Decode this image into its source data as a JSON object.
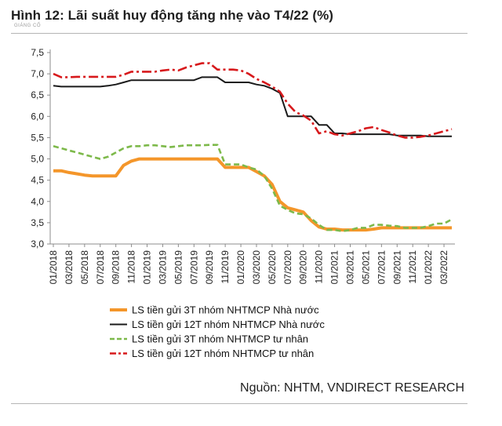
{
  "figure": {
    "title": "Hình 12: Lãi suất huy động tăng nhẹ vào T4/22 (%)",
    "watermark": "GIÁNG CỐ",
    "source": "Nguồn: NHTM, VNDIRECT RESEARCH"
  },
  "chart_data": {
    "type": "line",
    "title": "Hình 12: Lãi suất huy động tăng nhẹ vào T4/22 (%)",
    "xlabel": "",
    "ylabel": "",
    "ylim": [
      3.0,
      7.5
    ],
    "yticks": [
      "7,5",
      "7,0",
      "6,5",
      "6,0",
      "5,5",
      "5,0",
      "4,5",
      "4,0",
      "3,5",
      "3,0"
    ],
    "grid": false,
    "legend_position": "bottom",
    "x": [
      "01/2018",
      "02/2018",
      "03/2018",
      "04/2018",
      "05/2018",
      "06/2018",
      "07/2018",
      "08/2018",
      "09/2018",
      "10/2018",
      "11/2018",
      "12/2018",
      "01/2019",
      "02/2019",
      "03/2019",
      "04/2019",
      "05/2019",
      "06/2019",
      "07/2019",
      "08/2019",
      "09/2019",
      "10/2019",
      "11/2019",
      "12/2019",
      "01/2020",
      "02/2020",
      "03/2020",
      "04/2020",
      "05/2020",
      "06/2020",
      "07/2020",
      "08/2020",
      "09/2020",
      "10/2020",
      "11/2020",
      "12/2020",
      "01/2021",
      "02/2021",
      "03/2021",
      "04/2021",
      "05/2021",
      "06/2021",
      "07/2021",
      "08/2021",
      "09/2021",
      "10/2021",
      "11/2021",
      "12/2021",
      "01/2022",
      "02/2022",
      "03/2022",
      "04/2022"
    ],
    "xtick_labels": [
      "01/2018",
      "03/2018",
      "05/2018",
      "07/2018",
      "09/2018",
      "11/2018",
      "01/2019",
      "03/2019",
      "05/2019",
      "07/2019",
      "09/2019",
      "11/2019",
      "01/2020",
      "03/2020",
      "05/2020",
      "07/2020",
      "09/2020",
      "11/2020",
      "01/2021",
      "03/2021",
      "05/2021",
      "07/2021",
      "09/2021",
      "11/2021",
      "01/2022",
      "03/2022"
    ],
    "series": [
      {
        "name": "LS tiền gửi 3T nhóm NHTMCP Nhà nước",
        "color": "#F4962A",
        "style": "solid",
        "values": [
          4.72,
          4.72,
          4.68,
          4.65,
          4.62,
          4.6,
          4.6,
          4.6,
          4.6,
          4.85,
          4.95,
          5.0,
          5.0,
          5.0,
          5.0,
          5.0,
          5.0,
          5.0,
          5.0,
          5.0,
          5.0,
          5.0,
          4.8,
          4.8,
          4.8,
          4.8,
          4.7,
          4.6,
          4.4,
          4.0,
          3.85,
          3.8,
          3.75,
          3.55,
          3.4,
          3.35,
          3.35,
          3.33,
          3.33,
          3.33,
          3.33,
          3.35,
          3.38,
          3.38,
          3.38,
          3.38,
          3.38,
          3.38,
          3.38,
          3.38,
          3.38,
          3.38
        ]
      },
      {
        "name": "LS tiền gửi 12T nhóm NHTMCP Nhà nước",
        "color": "#1A1A1A",
        "style": "solid",
        "values": [
          6.72,
          6.7,
          6.7,
          6.7,
          6.7,
          6.7,
          6.7,
          6.72,
          6.75,
          6.8,
          6.85,
          6.85,
          6.85,
          6.85,
          6.85,
          6.85,
          6.85,
          6.85,
          6.85,
          6.92,
          6.92,
          6.92,
          6.8,
          6.8,
          6.8,
          6.8,
          6.75,
          6.72,
          6.65,
          6.55,
          6.0,
          6.0,
          6.0,
          6.0,
          5.8,
          5.8,
          5.6,
          5.6,
          5.58,
          5.58,
          5.58,
          5.58,
          5.58,
          5.58,
          5.55,
          5.55,
          5.55,
          5.55,
          5.53,
          5.53,
          5.53,
          5.53
        ]
      },
      {
        "name": "LS tiền gửi 3T nhóm NHTMCP tư nhân",
        "color": "#7DB94A",
        "style": "dashed",
        "values": [
          5.3,
          5.25,
          5.2,
          5.15,
          5.1,
          5.05,
          5.0,
          5.05,
          5.15,
          5.25,
          5.3,
          5.3,
          5.32,
          5.32,
          5.3,
          5.28,
          5.3,
          5.32,
          5.32,
          5.32,
          5.33,
          5.33,
          4.87,
          4.87,
          4.87,
          4.8,
          4.75,
          4.6,
          4.3,
          3.9,
          3.8,
          3.72,
          3.7,
          3.6,
          3.45,
          3.33,
          3.33,
          3.3,
          3.33,
          3.38,
          3.38,
          3.45,
          3.45,
          3.43,
          3.42,
          3.38,
          3.38,
          3.38,
          3.42,
          3.48,
          3.48,
          3.58
        ]
      },
      {
        "name": "LS tiền gửi 12T nhóm NHTMCP tư nhân",
        "color": "#D7191C",
        "style": "dashdot",
        "values": [
          7.0,
          6.92,
          6.92,
          6.93,
          6.93,
          6.93,
          6.93,
          6.93,
          6.93,
          6.98,
          7.05,
          7.05,
          7.05,
          7.05,
          7.08,
          7.1,
          7.08,
          7.15,
          7.2,
          7.25,
          7.25,
          7.1,
          7.1,
          7.1,
          7.08,
          7.0,
          6.88,
          6.8,
          6.7,
          6.58,
          6.3,
          6.1,
          6.02,
          5.9,
          5.6,
          5.65,
          5.58,
          5.55,
          5.6,
          5.65,
          5.72,
          5.75,
          5.68,
          5.62,
          5.55,
          5.5,
          5.5,
          5.52,
          5.55,
          5.6,
          5.65,
          5.7
        ]
      }
    ]
  }
}
